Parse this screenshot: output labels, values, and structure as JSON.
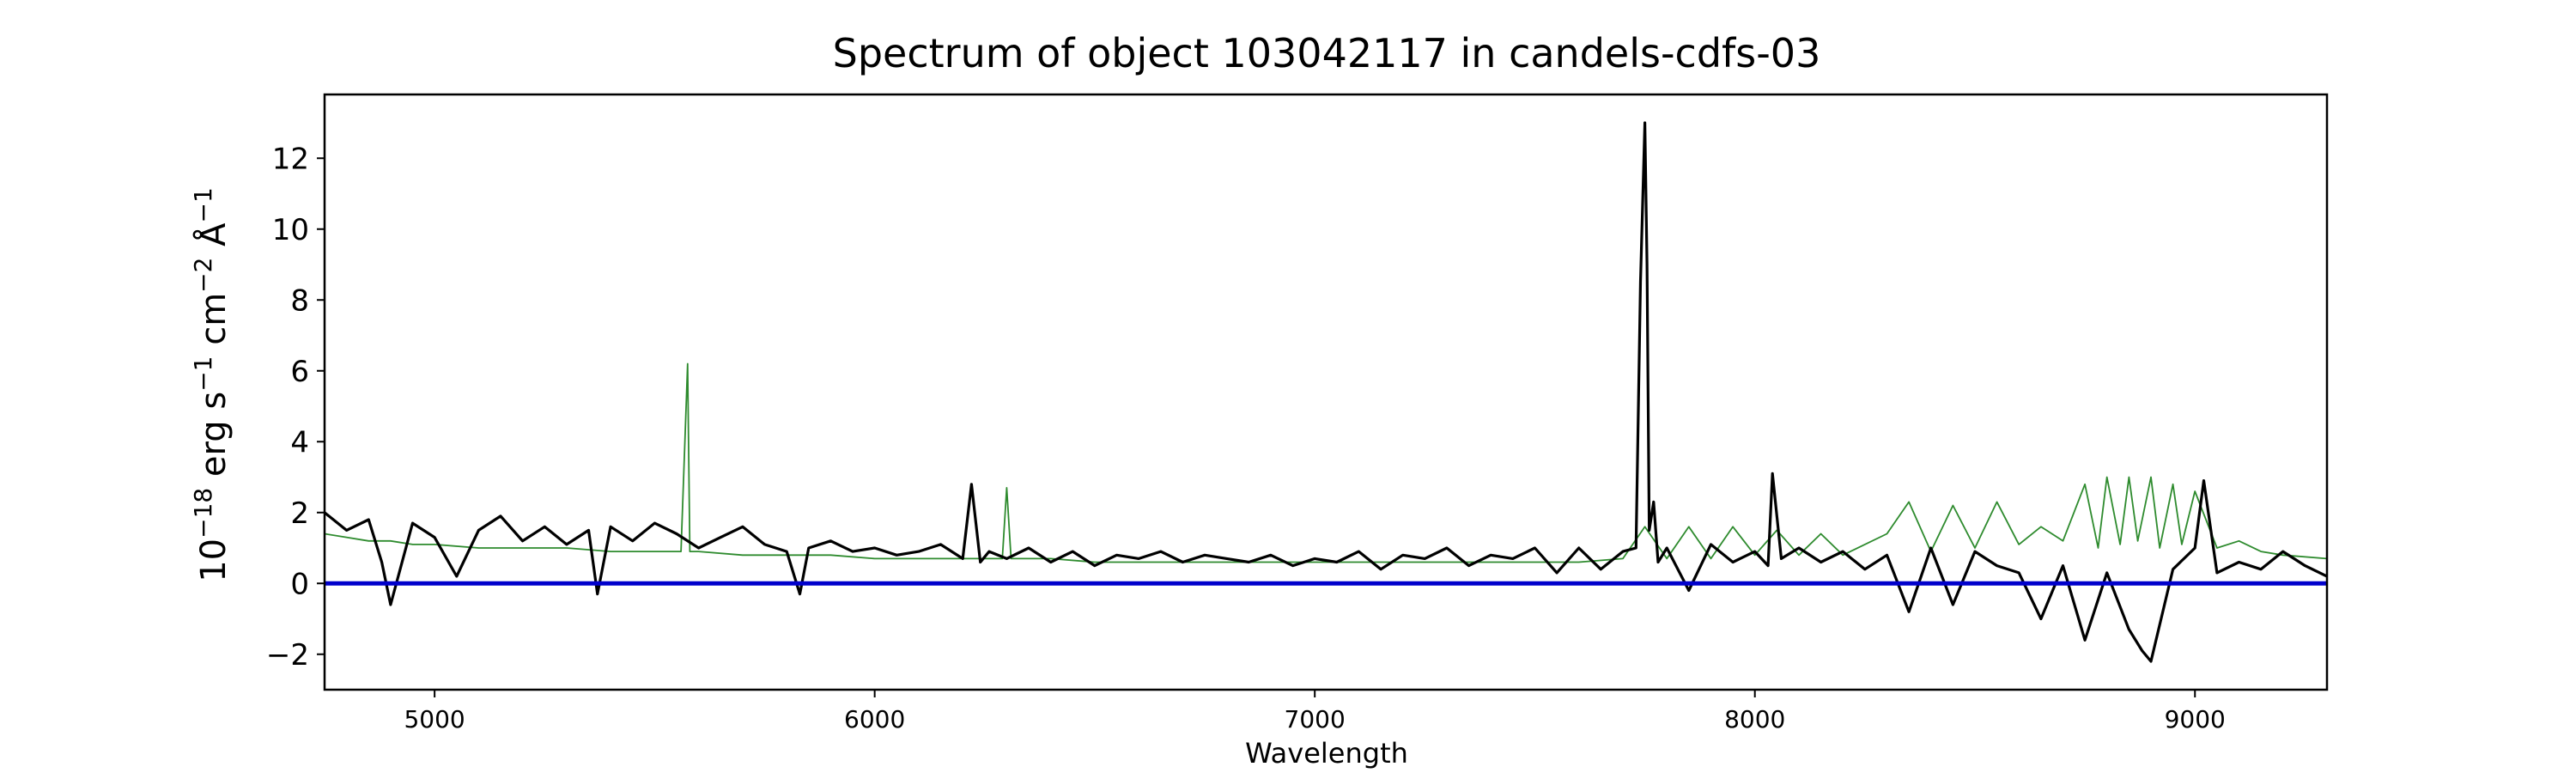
{
  "chart_data": {
    "type": "line",
    "title": "Spectrum of object 103042117 in candels-cdfs-03",
    "xlabel": "Wavelength",
    "ylabel_parts": [
      "10",
      "−18",
      " erg s",
      "−1",
      " cm",
      "−2",
      " Å",
      "−1"
    ],
    "xlim": [
      4750,
      9300
    ],
    "ylim": [
      -3,
      13.8
    ],
    "xticks": [
      5000,
      6000,
      7000,
      8000,
      9000
    ],
    "yticks": [
      -2,
      0,
      2,
      4,
      6,
      8,
      10,
      12
    ],
    "xtick_labels": [
      "5000",
      "6000",
      "7000",
      "8000",
      "9000"
    ],
    "ytick_labels": [
      "−2",
      "0",
      "2",
      "4",
      "6",
      "8",
      "10",
      "12"
    ],
    "grid": false,
    "zero_line": {
      "y": 0,
      "color": "#0000cc"
    },
    "series": [
      {
        "role": "observed spectrum",
        "color": "#000000",
        "x": [
          4750,
          4800,
          4850,
          4880,
          4900,
          4950,
          5000,
          5050,
          5100,
          5150,
          5200,
          5250,
          5300,
          5350,
          5370,
          5400,
          5450,
          5500,
          5550,
          5600,
          5650,
          5700,
          5750,
          5800,
          5830,
          5850,
          5900,
          5950,
          6000,
          6050,
          6100,
          6150,
          6200,
          6220,
          6240,
          6260,
          6300,
          6350,
          6400,
          6450,
          6500,
          6550,
          6600,
          6650,
          6700,
          6750,
          6800,
          6850,
          6900,
          6950,
          7000,
          7050,
          7100,
          7150,
          7200,
          7250,
          7300,
          7350,
          7400,
          7450,
          7500,
          7550,
          7600,
          7650,
          7700,
          7730,
          7740,
          7750,
          7755,
          7760,
          7770,
          7780,
          7800,
          7850,
          7900,
          7950,
          8000,
          8030,
          8040,
          8060,
          8100,
          8150,
          8200,
          8250,
          8300,
          8350,
          8400,
          8450,
          8500,
          8550,
          8600,
          8650,
          8700,
          8750,
          8800,
          8850,
          8880,
          8900,
          8950,
          9000,
          9020,
          9050,
          9100,
          9150,
          9200,
          9250,
          9300
        ],
        "y": [
          2.0,
          1.5,
          1.8,
          0.6,
          -0.6,
          1.7,
          1.3,
          0.2,
          1.5,
          1.9,
          1.2,
          1.6,
          1.1,
          1.5,
          -0.3,
          1.6,
          1.2,
          1.7,
          1.4,
          1.0,
          1.3,
          1.6,
          1.1,
          0.9,
          -0.3,
          1.0,
          1.2,
          0.9,
          1.0,
          0.8,
          0.9,
          1.1,
          0.7,
          2.8,
          0.6,
          0.9,
          0.7,
          1.0,
          0.6,
          0.9,
          0.5,
          0.8,
          0.7,
          0.9,
          0.6,
          0.8,
          0.7,
          0.6,
          0.8,
          0.5,
          0.7,
          0.6,
          0.9,
          0.4,
          0.8,
          0.7,
          1.0,
          0.5,
          0.8,
          0.7,
          1.0,
          0.3,
          1.0,
          0.4,
          0.9,
          1.0,
          8.5,
          13.0,
          9.0,
          1.5,
          2.3,
          0.6,
          1.0,
          -0.2,
          1.1,
          0.6,
          0.9,
          0.5,
          3.1,
          0.7,
          1.0,
          0.6,
          0.9,
          0.4,
          0.8,
          -0.8,
          1.0,
          -0.6,
          0.9,
          0.5,
          0.3,
          -1.0,
          0.5,
          -1.6,
          0.3,
          -1.3,
          -1.9,
          -2.2,
          0.4,
          1.0,
          2.9,
          0.3,
          0.6,
          0.4,
          0.9,
          0.5,
          0.2
        ]
      },
      {
        "role": "model",
        "color": "#2e8b2e",
        "x": [
          4750,
          4800,
          4850,
          4900,
          4950,
          5000,
          5100,
          5200,
          5300,
          5400,
          5500,
          5560,
          5575,
          5580,
          5600,
          5700,
          5800,
          5900,
          6000,
          6100,
          6200,
          6290,
          6300,
          6310,
          6400,
          6500,
          6600,
          6700,
          6800,
          6900,
          7000,
          7100,
          7200,
          7300,
          7400,
          7500,
          7600,
          7700,
          7750,
          7800,
          7850,
          7900,
          7950,
          8000,
          8050,
          8100,
          8150,
          8200,
          8300,
          8350,
          8400,
          8450,
          8500,
          8550,
          8600,
          8650,
          8700,
          8750,
          8780,
          8800,
          8830,
          8850,
          8870,
          8900,
          8920,
          8950,
          8970,
          9000,
          9050,
          9100,
          9150,
          9200,
          9300
        ],
        "y": [
          1.4,
          1.3,
          1.2,
          1.2,
          1.1,
          1.1,
          1.0,
          1.0,
          1.0,
          0.9,
          0.9,
          0.9,
          6.2,
          0.9,
          0.9,
          0.8,
          0.8,
          0.8,
          0.7,
          0.7,
          0.7,
          0.7,
          2.7,
          0.7,
          0.7,
          0.6,
          0.6,
          0.6,
          0.6,
          0.6,
          0.6,
          0.6,
          0.6,
          0.6,
          0.6,
          0.6,
          0.6,
          0.7,
          1.6,
          0.7,
          1.6,
          0.7,
          1.6,
          0.8,
          1.5,
          0.8,
          1.4,
          0.8,
          1.4,
          2.3,
          0.9,
          2.2,
          1.0,
          2.3,
          1.1,
          1.6,
          1.2,
          2.8,
          1.0,
          3.0,
          1.1,
          3.0,
          1.2,
          3.0,
          1.0,
          2.8,
          1.1,
          2.6,
          1.0,
          1.2,
          0.9,
          0.8,
          0.7
        ]
      }
    ]
  }
}
